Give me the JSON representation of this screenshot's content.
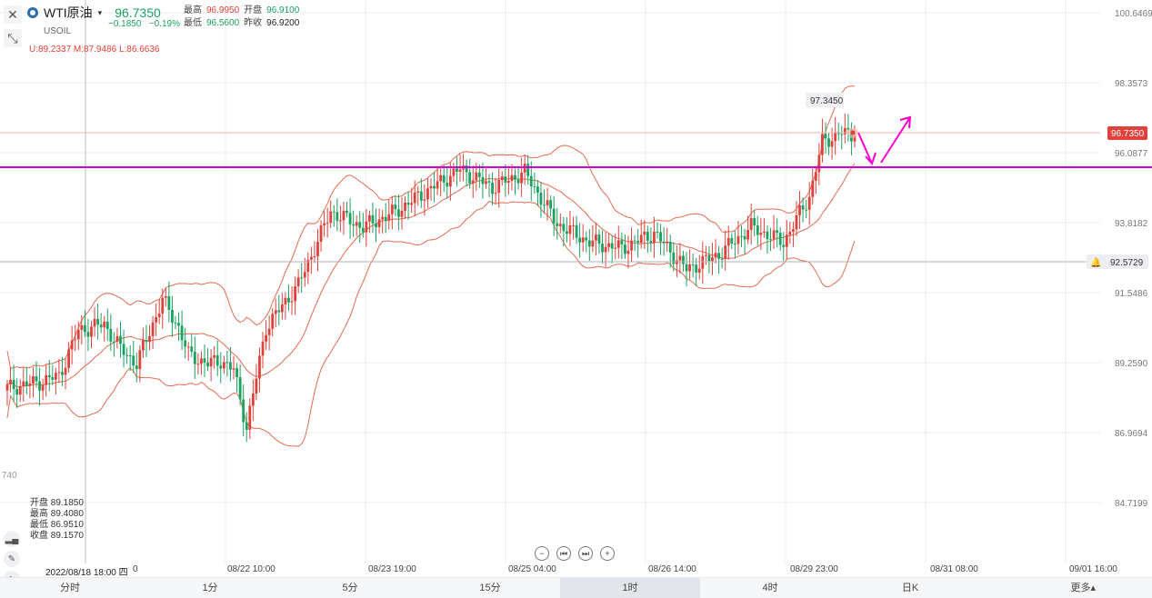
{
  "header": {
    "symbol": "WTI原油",
    "caret": "▾",
    "code": "USOIL",
    "last_price": "96.7350",
    "change": "−0.1850",
    "change_pct": "−0.19%",
    "high_label": "最高",
    "high_value": "96.9950",
    "open_label": "开盘",
    "open_value": "96.9100",
    "low_label": "最低",
    "low_value": "96.5600",
    "prev_close_label": "昨收",
    "prev_close_value": "96.9200"
  },
  "boll": "U:89.2337  M:87.9486  L:86.6636",
  "hover_info": {
    "open": "开盘 89.1850",
    "high": "最高 89.4080",
    "low": "最低 86.9510",
    "close": "收盘 89.1570"
  },
  "price_axis": [
    "100.6469",
    "98.3573",
    "96.0877",
    "93.8182",
    "91.5486",
    "89.2590",
    "86.9694",
    "84.7199"
  ],
  "price_tags": {
    "current": "96.7350",
    "alert": "92.5729",
    "peak": "97.3450",
    "left_edge": "740"
  },
  "time_axis": {
    "cursor": "2022/08/18 18:00 四",
    "cursor_tail": "0",
    "labels": [
      "08/22 10:00",
      "08/23 19:00",
      "08/25 04:00",
      "08/26 14:00",
      "08/29 23:00",
      "08/31 08:00",
      "09/01 16:00"
    ]
  },
  "periods": [
    "分时",
    "1分",
    "5分",
    "15分",
    "1时",
    "4时",
    "日K"
  ],
  "active_period": "1时",
  "more": "更多▴",
  "nav": [
    "−",
    "⏮",
    "⏭",
    "+"
  ],
  "colors": {
    "up": "#e0413a",
    "down": "#1aa260",
    "support_line": "#cc00cc",
    "arrow": "#ff00cc",
    "bollinger": "#e26b4f",
    "current_tag": "#e0413a"
  }
}
